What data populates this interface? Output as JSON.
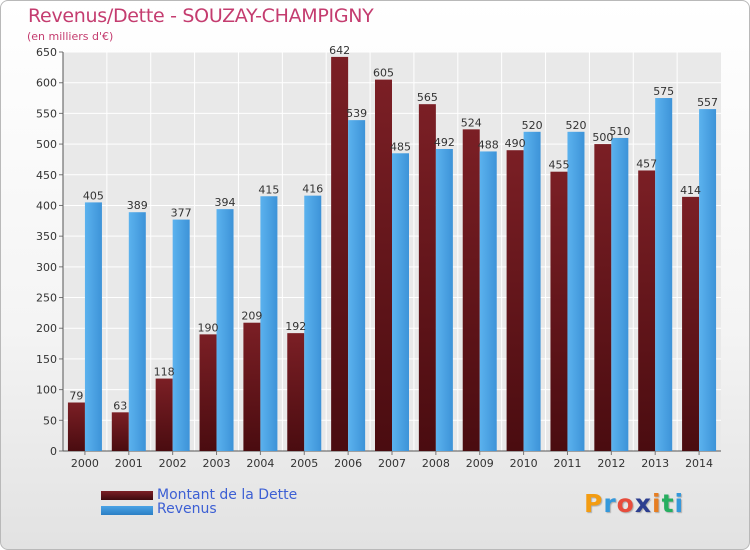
{
  "header": {
    "title": "Revenus/Dette - SOUZAY-CHAMPIGNY",
    "subtitle": "(en milliers d'€)"
  },
  "legend": {
    "dette_label": "Montant de la Dette",
    "revenus_label": "Revenus"
  },
  "logo": {
    "letters": [
      "P",
      "r",
      "o",
      "x",
      "i",
      "t",
      "i"
    ],
    "colors": [
      "#f39c12",
      "#3498db",
      "#e74c3c",
      "#2c3e90",
      "#e67e22",
      "#27ae60",
      "#3498db"
    ]
  },
  "colors": {
    "dette": "#7b1f25",
    "revenus": "#4aa3e6",
    "title": "#c43c6f",
    "legend_text": "#3c5fd4"
  },
  "chart_data": {
    "type": "bar",
    "title": "Revenus/Dette - SOUZAY-CHAMPIGNY",
    "ylabel": "(en milliers d'€)",
    "categories": [
      "2000",
      "2001",
      "2002",
      "2003",
      "2004",
      "2005",
      "2006",
      "2007",
      "2008",
      "2009",
      "2010",
      "2011",
      "2012",
      "2013",
      "2014"
    ],
    "series": [
      {
        "name": "Montant de la Dette",
        "values": [
          79,
          63,
          118,
          190,
          209,
          192,
          642,
          605,
          565,
          524,
          490,
          455,
          500,
          457,
          414
        ]
      },
      {
        "name": "Revenus",
        "values": [
          405,
          389,
          377,
          394,
          415,
          416,
          539,
          485,
          492,
          488,
          520,
          520,
          510,
          575,
          557
        ]
      }
    ],
    "ylim": [
      0,
      650
    ],
    "yticks": [
      0,
      50,
      100,
      150,
      200,
      250,
      300,
      350,
      400,
      450,
      500,
      550,
      600,
      650
    ],
    "grid": true,
    "legend_position": "bottom-left"
  }
}
